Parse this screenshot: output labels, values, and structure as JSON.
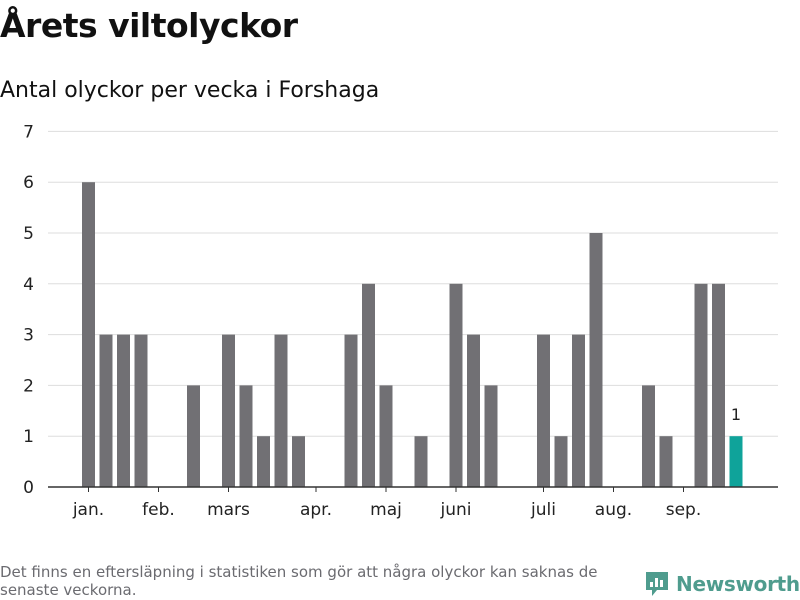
{
  "title": "Årets viltolyckor",
  "subtitle": "Antal olyckor per vecka i Forshaga",
  "footnote": "Det finns en eftersläpning i statistiken som gör att några olyckor kan saknas de senaste veckorna.",
  "brand": {
    "name": "Newsworthy",
    "icon": "newsworthy-logo-icon",
    "color": "#4f9c8e"
  },
  "colors": {
    "bar": "#717074",
    "highlight": "#0fa39a",
    "grid": "#dddddd",
    "axis": "#333333",
    "text": "#222222"
  },
  "chart_data": {
    "type": "bar",
    "title": "Årets viltolyckor",
    "subtitle": "Antal olyckor per vecka i Forshaga",
    "xlabel": "",
    "ylabel": "",
    "ylim": [
      0,
      7
    ],
    "yticks": [
      0,
      1,
      2,
      3,
      4,
      5,
      6,
      7
    ],
    "grid": true,
    "weeks": [
      1,
      2,
      3,
      4,
      5,
      6,
      7,
      8,
      9,
      10,
      11,
      12,
      13,
      14,
      15,
      16,
      17,
      18,
      19,
      20,
      21,
      22,
      23,
      24,
      25,
      26,
      27,
      28,
      29,
      30,
      31,
      32,
      33,
      34,
      35,
      36,
      37,
      38,
      39,
      40
    ],
    "values": [
      6,
      3,
      3,
      3,
      0,
      0,
      2,
      0,
      3,
      2,
      1,
      3,
      1,
      0,
      0,
      3,
      4,
      2,
      0,
      1,
      0,
      4,
      3,
      2,
      0,
      0,
      3,
      1,
      3,
      5,
      0,
      0,
      2,
      1,
      0,
      4,
      4,
      1,
      0,
      0
    ],
    "highlight": {
      "index": 37,
      "label": "1"
    },
    "month_labels": [
      {
        "label": "jan.",
        "week": 1
      },
      {
        "label": "feb.",
        "week": 5
      },
      {
        "label": "mars",
        "week": 9
      },
      {
        "label": "apr.",
        "week": 14
      },
      {
        "label": "maj",
        "week": 18
      },
      {
        "label": "juni",
        "week": 22
      },
      {
        "label": "juli",
        "week": 27
      },
      {
        "label": "aug.",
        "week": 31
      },
      {
        "label": "sep.",
        "week": 35
      }
    ]
  }
}
